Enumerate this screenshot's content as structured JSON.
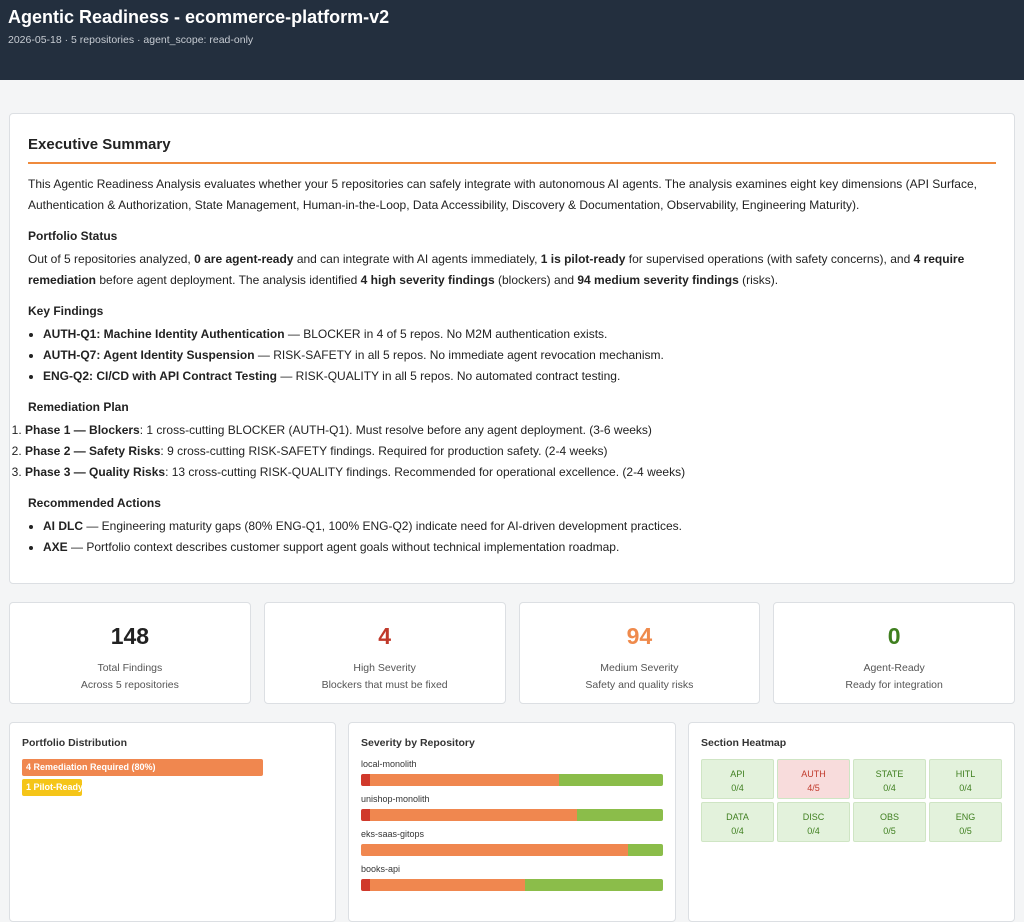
{
  "header": {
    "title": "Agentic Readiness - ecommerce-platform-v2",
    "subtitle": "2026-05-18 · 5 repositories · agent_scope: read-only"
  },
  "summary": {
    "title": "Executive Summary",
    "intro": "This Agentic Readiness Analysis evaluates whether your 5 repositories can safely integrate with autonomous AI agents. The analysis examines eight key dimensions (API Surface, Authentication & Authorization, State Management, Human-in-the-Loop, Data Accessibility, Discovery & Documentation, Observability, Engineering Maturity).",
    "portfolio_status": {
      "heading": "Portfolio Status",
      "runs": [
        {
          "text": "Out of 5 repositories analyzed, ",
          "bold": false
        },
        {
          "text": "0 are agent-ready",
          "bold": true
        },
        {
          "text": " and can integrate with AI agents immediately, ",
          "bold": false
        },
        {
          "text": "1 is pilot-ready",
          "bold": true
        },
        {
          "text": " for supervised operations (with safety concerns), and ",
          "bold": false
        },
        {
          "text": "4 require remediation",
          "bold": true
        },
        {
          "text": " before agent deployment. The analysis identified ",
          "bold": false
        },
        {
          "text": "4 high severity findings",
          "bold": true
        },
        {
          "text": " (blockers) and ",
          "bold": false
        },
        {
          "text": "94 medium severity findings",
          "bold": true
        },
        {
          "text": " (risks).",
          "bold": false
        }
      ]
    },
    "key_findings": {
      "heading": "Key Findings",
      "ordered": false,
      "items": [
        {
          "label": "AUTH-Q1: Machine Identity Authentication",
          "text": " — BLOCKER in 4 of 5 repos. No M2M authentication exists."
        },
        {
          "label": "AUTH-Q7: Agent Identity Suspension",
          "text": " — RISK-SAFETY in all 5 repos. No immediate agent revocation mechanism."
        },
        {
          "label": "ENG-Q2: CI/CD with API Contract Testing",
          "text": " — RISK-QUALITY in all 5 repos. No automated contract testing."
        }
      ]
    },
    "remediation_plan": {
      "heading": "Remediation Plan",
      "ordered": true,
      "items": [
        {
          "label": "Phase 1 — Blockers",
          "text": ": 1 cross-cutting BLOCKER (AUTH-Q1). Must resolve before any agent deployment. (3-6 weeks)"
        },
        {
          "label": "Phase 2 — Safety Risks",
          "text": ": 9 cross-cutting RISK-SAFETY findings. Required for production safety. (2-4 weeks)"
        },
        {
          "label": "Phase 3 — Quality Risks",
          "text": ": 13 cross-cutting RISK-QUALITY findings. Recommended for operational excellence. (2-4 weeks)"
        }
      ]
    },
    "recommended_actions": {
      "heading": "Recommended Actions",
      "ordered": false,
      "items": [
        {
          "label": "AI DLC",
          "text": " — Engineering maturity gaps (80% ENG-Q1, 100% ENG-Q2) indicate need for AI-driven development practices."
        },
        {
          "label": "AXE",
          "text": " — Portfolio context describes customer support agent goals without technical implementation roadmap."
        }
      ]
    }
  },
  "stats": [
    {
      "value": 148,
      "label": "Total Findings",
      "sublabel": "Across 5 repositories",
      "color": "#222222"
    },
    {
      "value": 4,
      "label": "High Severity",
      "sublabel": "Blockers that must be fixed",
      "color": "#c0392b"
    },
    {
      "value": 94,
      "label": "Medium Severity",
      "sublabel": "Safety and quality risks",
      "color": "#ef8a4c"
    },
    {
      "value": 0,
      "label": "Agent-Ready",
      "sublabel": "Ready for integration",
      "color": "#3f7f1f"
    }
  ],
  "portfolio_distribution": {
    "title": "Portfolio Distribution",
    "bars": [
      {
        "label": "4 Remediation Required (80%)",
        "share": 80,
        "color": "#f0874f"
      },
      {
        "label": "1 Pilot-Ready",
        "share": 20,
        "color": "#f5c518"
      }
    ]
  },
  "severity_by_repository": {
    "title": "Severity by Repository",
    "colors": [
      "#d0392b",
      "#f0874f",
      "#8bbd4a"
    ],
    "repos": [
      {
        "name": "local-monolith",
        "values": [
          1,
          22,
          12
        ]
      },
      {
        "name": "unishop-monolith",
        "values": [
          1,
          24,
          10
        ]
      },
      {
        "name": "eks-saas-gitops",
        "values": [
          0,
          23,
          3
        ]
      },
      {
        "name": "books-api",
        "values": [
          1,
          18,
          16
        ]
      }
    ]
  },
  "section_heatmap": {
    "title": "Section Heatmap",
    "cells": [
      {
        "label": "API",
        "value": "0/4",
        "color": "#e3f2dc",
        "text_color": "#3f7f1f"
      },
      {
        "label": "AUTH",
        "value": "4/5",
        "color": "#f8dcdc",
        "text_color": "#c0392b"
      },
      {
        "label": "STATE",
        "value": "0/4",
        "color": "#e3f2dc",
        "text_color": "#3f7f1f"
      },
      {
        "label": "HITL",
        "value": "0/4",
        "color": "#e3f2dc",
        "text_color": "#3f7f1f"
      },
      {
        "label": "DATA",
        "value": "0/4",
        "color": "#e3f2dc",
        "text_color": "#3f7f1f"
      },
      {
        "label": "DISC",
        "value": "0/4",
        "color": "#e3f2dc",
        "text_color": "#3f7f1f"
      },
      {
        "label": "OBS",
        "value": "0/5",
        "color": "#e3f2dc",
        "text_color": "#3f7f1f"
      },
      {
        "label": "ENG",
        "value": "0/5",
        "color": "#e3f2dc",
        "text_color": "#3f7f1f"
      }
    ]
  }
}
